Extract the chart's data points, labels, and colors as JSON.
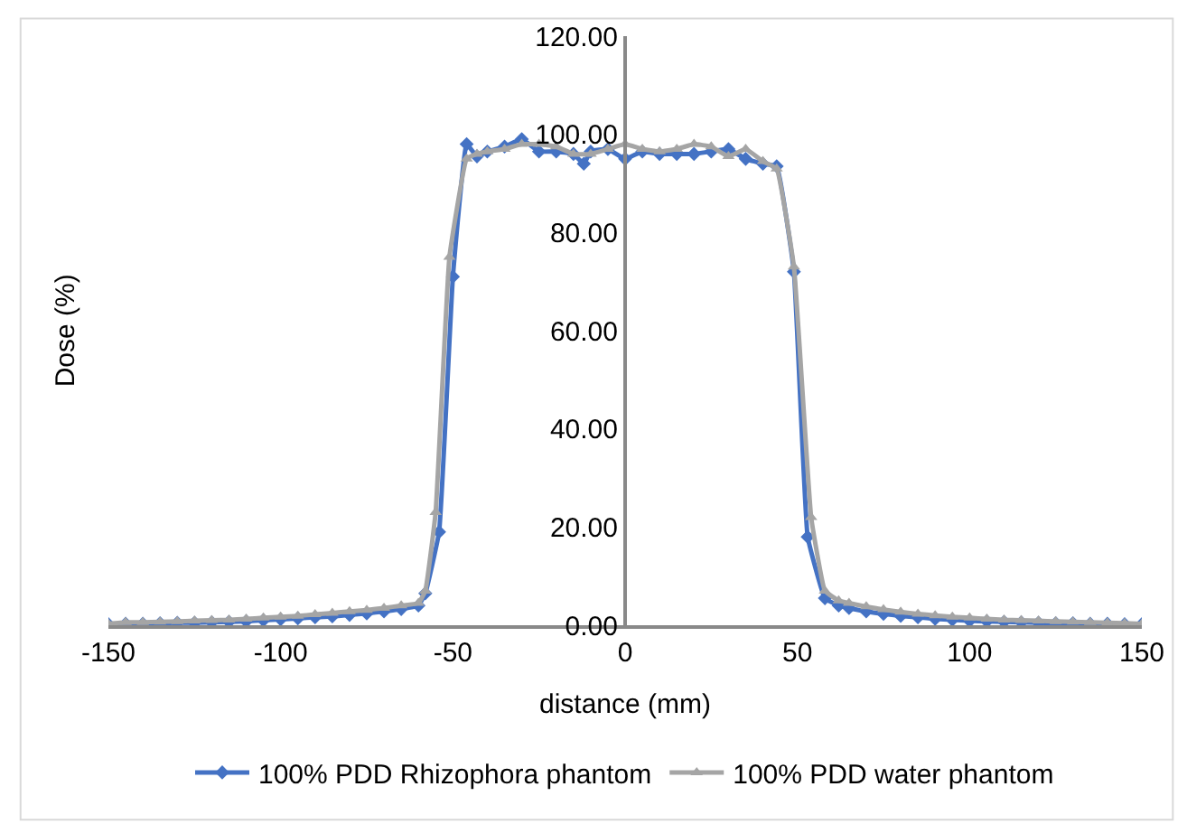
{
  "chart_data": {
    "type": "line",
    "xlabel": "distance (mm)",
    "ylabel": "Dose (%)",
    "xlim": [
      -150,
      150
    ],
    "xticks": [
      -150,
      -100,
      -50,
      0,
      50,
      100,
      150
    ],
    "ylim": [
      0,
      120
    ],
    "yticks": [
      {
        "value": 0,
        "label": "0.00"
      },
      {
        "value": 20,
        "label": "20.00"
      },
      {
        "value": 40,
        "label": "40.00"
      },
      {
        "value": 60,
        "label": "60.00"
      },
      {
        "value": 80,
        "label": "80.00"
      },
      {
        "value": 100,
        "label": "100.00"
      },
      {
        "value": 120,
        "label": "120.00"
      }
    ],
    "legend": "bottom",
    "line_style": "solid",
    "series": [
      {
        "name": "100% PDD Rhizophora phantom",
        "color": "#4472c4",
        "marker": "diamond",
        "x": [
          -150,
          -145,
          -140,
          -135,
          -130,
          -125,
          -120,
          -115,
          -110,
          -105,
          -100,
          -95,
          -90,
          -85,
          -80,
          -75,
          -70,
          -65,
          -60,
          -58,
          -54,
          -50,
          -46,
          -43,
          -40,
          -35,
          -30,
          -25,
          -20,
          -15,
          -12,
          -10,
          -5,
          0,
          5,
          10,
          15,
          20,
          25,
          30,
          35,
          40,
          44,
          49,
          53,
          58,
          62,
          65,
          70,
          75,
          80,
          85,
          90,
          95,
          100,
          105,
          110,
          115,
          120,
          125,
          130,
          135,
          140,
          145,
          150
        ],
        "values": [
          0.2,
          0.3,
          0.3,
          0.4,
          0.5,
          0.5,
          0.6,
          0.7,
          0.8,
          1.0,
          1.2,
          1.4,
          1.6,
          1.8,
          2.1,
          2.4,
          2.8,
          3.3,
          4.0,
          6.5,
          19,
          71,
          98,
          95.5,
          96.5,
          97.5,
          99,
          96.5,
          96.5,
          96,
          94,
          96.5,
          97,
          95,
          96.5,
          96,
          96,
          96,
          96.5,
          97,
          95,
          94,
          93.5,
          72,
          18,
          5.5,
          4,
          3.5,
          2.8,
          2.3,
          1.9,
          1.6,
          1.3,
          1.1,
          0.9,
          0.8,
          0.7,
          0.6,
          0.5,
          0.4,
          0.4,
          0.3,
          0.3,
          0.2,
          0.2
        ]
      },
      {
        "name": "100% PDD water phantom",
        "color": "#a5a5a5",
        "marker": "triangle",
        "x": [
          -150,
          -145,
          -140,
          -135,
          -130,
          -125,
          -120,
          -115,
          -110,
          -105,
          -100,
          -95,
          -90,
          -85,
          -80,
          -75,
          -70,
          -65,
          -60,
          -58,
          -55,
          -51,
          -46,
          -43,
          -40,
          -35,
          -30,
          -25,
          -20,
          -15,
          -10,
          -5,
          0,
          5,
          10,
          15,
          20,
          25,
          30,
          35,
          40,
          44,
          49,
          54,
          58,
          62,
          65,
          70,
          75,
          80,
          85,
          90,
          95,
          100,
          105,
          110,
          115,
          120,
          125,
          130,
          135,
          140,
          145,
          150
        ],
        "values": [
          0.3,
          0.6,
          0.6,
          0.7,
          0.8,
          0.9,
          1.0,
          1.1,
          1.3,
          1.5,
          1.7,
          1.9,
          2.2,
          2.5,
          2.8,
          3.1,
          3.5,
          4.0,
          4.5,
          7,
          23,
          75,
          95,
          96,
          96.5,
          97,
          98,
          98,
          97.5,
          96,
          96,
          97,
          98,
          97,
          96.5,
          97,
          98,
          97.5,
          95.5,
          97,
          94.5,
          93,
          73,
          22,
          7,
          5,
          4.5,
          3.8,
          3.2,
          2.7,
          2.3,
          2.0,
          1.7,
          1.5,
          1.3,
          1.1,
          1.0,
          0.9,
          0.8,
          0.7,
          0.6,
          0.5,
          0.4,
          0.3
        ]
      }
    ]
  }
}
